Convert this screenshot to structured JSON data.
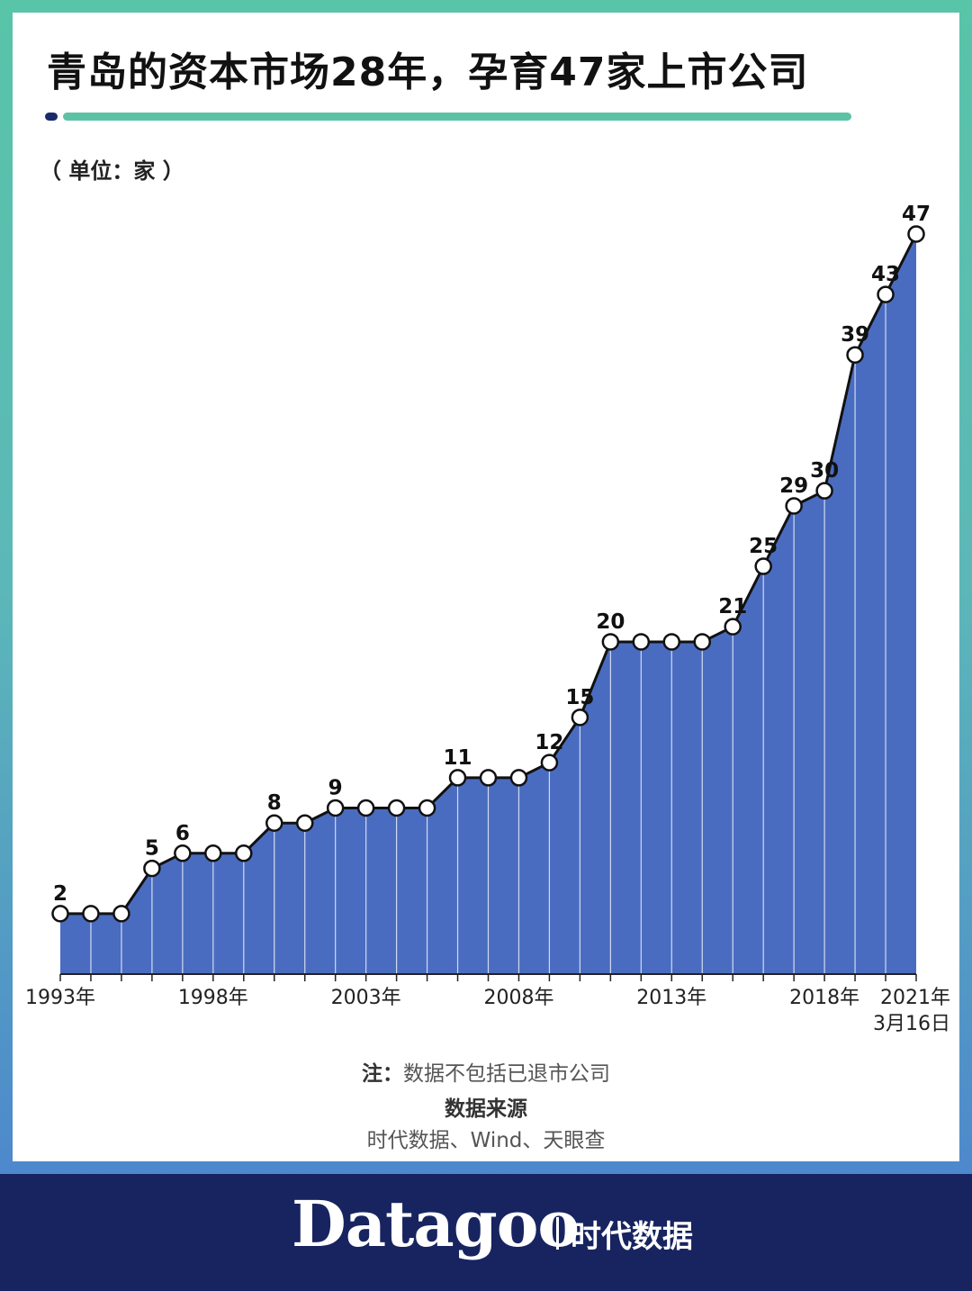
{
  "title": "青岛的资本市场28年，孕育47家上市公司",
  "unit_label": "（ 单位：家 ）",
  "note": {
    "prefix": "注：",
    "text": "数据不包括已退市公司"
  },
  "source": {
    "heading": "数据来源",
    "text": "时代数据、Wind、天眼查"
  },
  "footer": {
    "brand": "Datagoo",
    "brand_cn": "时代数据"
  },
  "colors": {
    "area_fill": "#4a6cc0",
    "accent_green": "#5cc2a6",
    "footer_navy": "#172460"
  },
  "chart_data": {
    "type": "area",
    "x": [
      "1993年",
      "1994年",
      "1995年",
      "1996年",
      "1997年",
      "1998年",
      "1999年",
      "2000年",
      "2001年",
      "2002年",
      "2003年",
      "2004年",
      "2005年",
      "2006年",
      "2007年",
      "2008年",
      "2009年",
      "2010年",
      "2011年",
      "2012年",
      "2013年",
      "2014年",
      "2015年",
      "2016年",
      "2017年",
      "2018年",
      "2019年",
      "2020年",
      "2021年3月16日"
    ],
    "values": [
      2,
      2,
      2,
      5,
      6,
      6,
      6,
      8,
      8,
      9,
      9,
      9,
      9,
      11,
      11,
      11,
      12,
      15,
      20,
      20,
      20,
      20,
      21,
      25,
      29,
      30,
      39,
      43,
      47
    ],
    "data_labels": [
      {
        "index": 0,
        "text": "2"
      },
      {
        "index": 3,
        "text": "5"
      },
      {
        "index": 4,
        "text": "6"
      },
      {
        "index": 7,
        "text": "8"
      },
      {
        "index": 9,
        "text": "9"
      },
      {
        "index": 13,
        "text": "11"
      },
      {
        "index": 16,
        "text": "12"
      },
      {
        "index": 17,
        "text": "15"
      },
      {
        "index": 18,
        "text": "20"
      },
      {
        "index": 22,
        "text": "21"
      },
      {
        "index": 23,
        "text": "25"
      },
      {
        "index": 24,
        "text": "29"
      },
      {
        "index": 25,
        "text": "30"
      },
      {
        "index": 26,
        "text": "39"
      },
      {
        "index": 27,
        "text": "43"
      },
      {
        "index": 28,
        "text": "47"
      }
    ],
    "x_tick_labels": [
      {
        "index": 0,
        "lines": [
          "1993年"
        ]
      },
      {
        "index": 5,
        "lines": [
          "1998年"
        ]
      },
      {
        "index": 10,
        "lines": [
          "2003年"
        ]
      },
      {
        "index": 15,
        "lines": [
          "2008年"
        ]
      },
      {
        "index": 20,
        "lines": [
          "2013年"
        ]
      },
      {
        "index": 25,
        "lines": [
          "2018年"
        ]
      },
      {
        "index": 28,
        "lines": [
          "2021年",
          "3月16日"
        ]
      }
    ],
    "ylim": [
      -2,
      47
    ],
    "grid": false,
    "legend": "none"
  }
}
